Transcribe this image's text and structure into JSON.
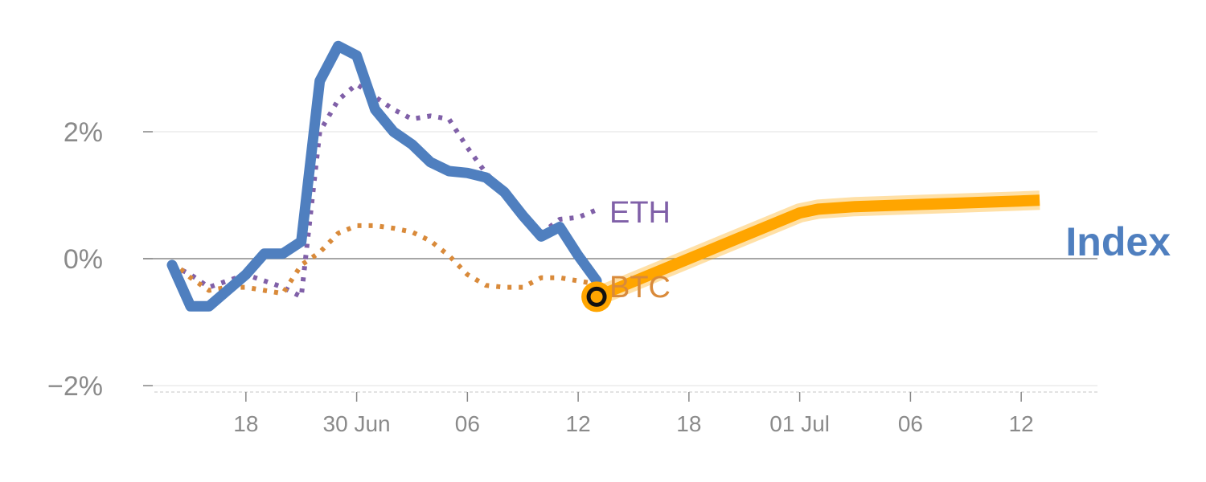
{
  "chart_data": {
    "type": "line",
    "y_unit": "%",
    "ylim": [
      -2.1,
      3.6
    ],
    "y_ticks": [
      {
        "value": 2,
        "label": "2%"
      },
      {
        "value": 0,
        "label": "0%"
      },
      {
        "value": -2,
        "label": "−2%"
      }
    ],
    "x_ticks": [
      {
        "index": 4,
        "label": "18"
      },
      {
        "index": 10,
        "label": "30 Jun"
      },
      {
        "index": 16,
        "label": "06"
      },
      {
        "index": 22,
        "label": "12"
      },
      {
        "index": 28,
        "label": "18"
      },
      {
        "index": 34,
        "label": "01 Jul"
      },
      {
        "index": 40,
        "label": "06"
      },
      {
        "index": 46,
        "label": "12"
      }
    ],
    "grid": true,
    "series": [
      {
        "name": "Index",
        "color": "#4f7fbf",
        "style": "solid",
        "x": [
          0,
          1,
          2,
          3,
          4,
          5,
          6,
          7,
          8,
          9,
          10,
          11,
          12,
          13,
          14,
          15,
          16,
          17,
          18,
          19,
          20,
          21,
          22,
          23
        ],
        "values": [
          -0.1,
          -0.75,
          -0.75,
          -0.5,
          -0.25,
          0.08,
          0.08,
          0.27,
          2.8,
          3.35,
          3.2,
          2.35,
          2.0,
          1.8,
          1.52,
          1.38,
          1.35,
          1.28,
          1.05,
          0.68,
          0.35,
          0.5,
          0.05,
          -0.35
        ]
      },
      {
        "name": "ETH",
        "color": "#8060a8",
        "style": "dotted",
        "x": [
          0,
          1,
          2,
          3,
          4,
          5,
          6,
          7,
          8,
          9,
          10,
          11,
          12,
          13,
          14,
          15,
          16,
          17,
          18,
          19,
          20,
          21,
          22,
          23
        ],
        "values": [
          -0.1,
          -0.25,
          -0.45,
          -0.35,
          -0.25,
          -0.35,
          -0.45,
          -0.6,
          2.0,
          2.5,
          2.75,
          2.55,
          2.35,
          2.2,
          2.25,
          2.2,
          1.75,
          1.35,
          1.05,
          0.68,
          0.4,
          0.62,
          0.65,
          0.77
        ]
      },
      {
        "name": "BTC",
        "color": "#d98a3a",
        "style": "dotted",
        "x": [
          0,
          1,
          2,
          3,
          4,
          5,
          6,
          7,
          8,
          9,
          10,
          11,
          12,
          13,
          14,
          15,
          16,
          17,
          18,
          19,
          20,
          21,
          22,
          23
        ],
        "values": [
          -0.05,
          -0.3,
          -0.5,
          -0.45,
          -0.45,
          -0.5,
          -0.55,
          -0.1,
          0.1,
          0.4,
          0.52,
          0.52,
          0.48,
          0.42,
          0.28,
          0.05,
          -0.25,
          -0.42,
          -0.45,
          -0.45,
          -0.3,
          -0.3,
          -0.35,
          -0.4
        ]
      },
      {
        "name": "",
        "color": "#ffa500",
        "style": "projection",
        "x": [
          23,
          34,
          35,
          37,
          41,
          44,
          47
        ],
        "values": [
          -0.6,
          0.72,
          0.78,
          0.82,
          0.86,
          0.89,
          0.92
        ]
      }
    ],
    "marker": {
      "x": 23,
      "y": -0.6,
      "color": "#ffa500"
    },
    "labels": [
      {
        "text": "ETH",
        "series": "ETH",
        "color": "#8060a8"
      },
      {
        "text": "BTC",
        "series": "BTC",
        "color": "#d98a3a"
      },
      {
        "text": "Index",
        "series": "Index",
        "color": "#4f7fbf"
      }
    ],
    "x_range": [
      -1.5,
      52.5
    ]
  }
}
